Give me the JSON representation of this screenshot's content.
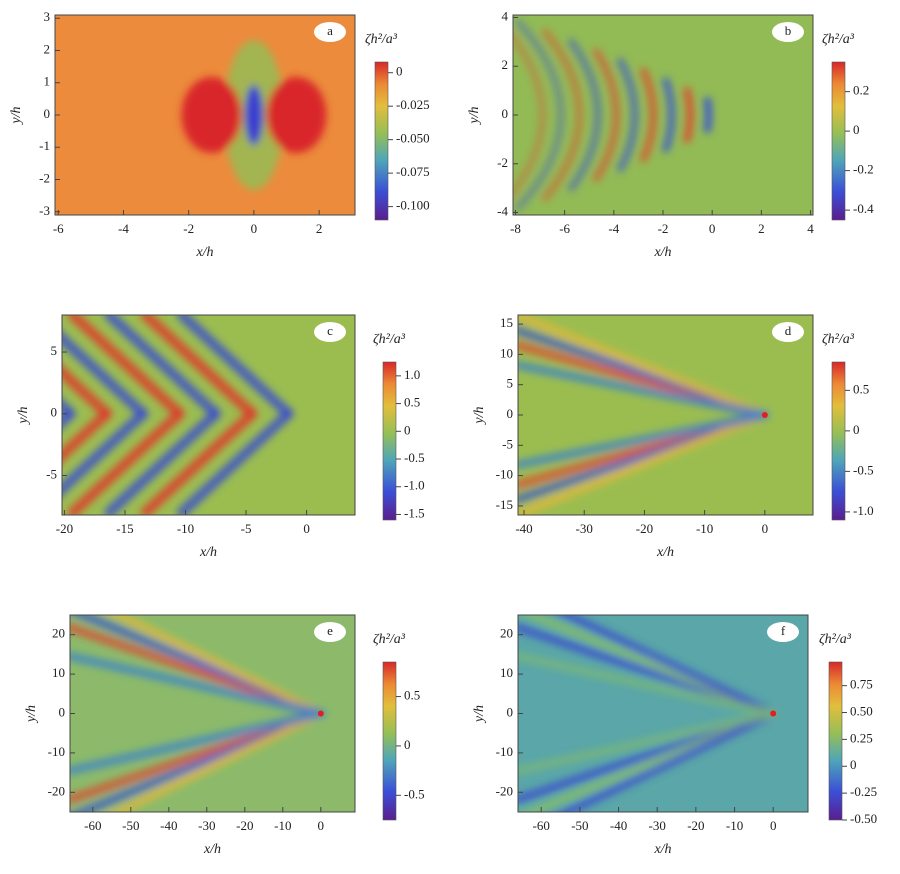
{
  "chart_data": [
    {
      "type": "heatmap",
      "label": "a",
      "xlabel": "x/h",
      "ylabel": "y/h",
      "colorbar_label": "ζh²/a³",
      "xlim": [
        -6.1,
        3.1
      ],
      "ylim": [
        -3.1,
        3.1
      ],
      "xticks": [
        -6,
        -4,
        -2,
        0,
        2
      ],
      "yticks": [
        -3,
        -2,
        -1,
        0,
        1,
        2,
        3
      ],
      "clim": [
        -0.11,
        0.008
      ],
      "cticks": [
        0,
        -0.025,
        {
          "value": -0.05,
          "label": "-0.050"
        },
        -0.075,
        {
          "value": -0.1,
          "label": "-0.100"
        }
      ]
    },
    {
      "type": "heatmap",
      "label": "b",
      "xlabel": "x/h",
      "ylabel": "y/h",
      "colorbar_label": "ζh²/a³",
      "xlim": [
        -8.1,
        4.1
      ],
      "ylim": [
        -4.1,
        4.1
      ],
      "xticks": [
        -8,
        -6,
        -4,
        -2,
        0,
        2,
        4
      ],
      "yticks": [
        -4,
        -2,
        0,
        2,
        4
      ],
      "clim": [
        -0.45,
        0.35
      ],
      "cticks": [
        0.2,
        0,
        -0.2,
        -0.4
      ]
    },
    {
      "type": "heatmap",
      "label": "c",
      "xlabel": "x/h",
      "ylabel": "y/h",
      "colorbar_label": "ζh²/a³",
      "xlim": [
        -20.2,
        4
      ],
      "ylim": [
        -8.2,
        8
      ],
      "xticks": [
        -20,
        -15,
        -10,
        -5,
        0
      ],
      "yticks": [
        -5,
        0,
        5
      ],
      "clim": [
        -1.6,
        1.25
      ],
      "cticks": [
        {
          "value": 1,
          "label": "1.0"
        },
        0.5,
        0,
        -0.5,
        {
          "value": -1,
          "label": "-1.0"
        },
        -1.5
      ]
    },
    {
      "type": "heatmap",
      "label": "d",
      "xlabel": "x/h",
      "ylabel": "y/h",
      "colorbar_label": "ζh²/a³",
      "xlim": [
        -41,
        8
      ],
      "ylim": [
        -16.5,
        16.5
      ],
      "xticks": [
        -40,
        -30,
        -20,
        -10,
        0
      ],
      "yticks": [
        -15,
        -10,
        -5,
        0,
        5,
        10,
        15
      ],
      "clim": [
        -1.1,
        0.85
      ],
      "cticks": [
        0.5,
        0,
        -0.5,
        {
          "value": -1,
          "label": "-1.0"
        }
      ]
    },
    {
      "type": "heatmap",
      "label": "e",
      "xlabel": "x/h",
      "ylabel": "y/h",
      "colorbar_label": "ζh²/a³",
      "xlim": [
        -66,
        9
      ],
      "ylim": [
        -25,
        25
      ],
      "xticks": [
        -60,
        -50,
        -40,
        -30,
        -20,
        -10,
        0
      ],
      "yticks": [
        -20,
        -10,
        0,
        10,
        20
      ],
      "clim": [
        -0.75,
        0.85
      ],
      "cticks": [
        0.5,
        0,
        -0.5
      ]
    },
    {
      "type": "heatmap",
      "label": "f",
      "xlabel": "x/h",
      "ylabel": "y/h",
      "colorbar_label": "ζh²/a³",
      "xlim": [
        -66,
        9
      ],
      "ylim": [
        -25,
        25
      ],
      "xticks": [
        -60,
        -50,
        -40,
        -30,
        -20,
        -10,
        0
      ],
      "yticks": [
        -20,
        -10,
        0,
        10,
        20
      ],
      "clim": [
        -0.5,
        0.97
      ],
      "cticks": [
        0.75,
        {
          "value": 0.5,
          "label": "0.50"
        },
        0.25,
        0,
        -0.25,
        {
          "value": -0.5,
          "label": "-0.50"
        }
      ]
    }
  ]
}
